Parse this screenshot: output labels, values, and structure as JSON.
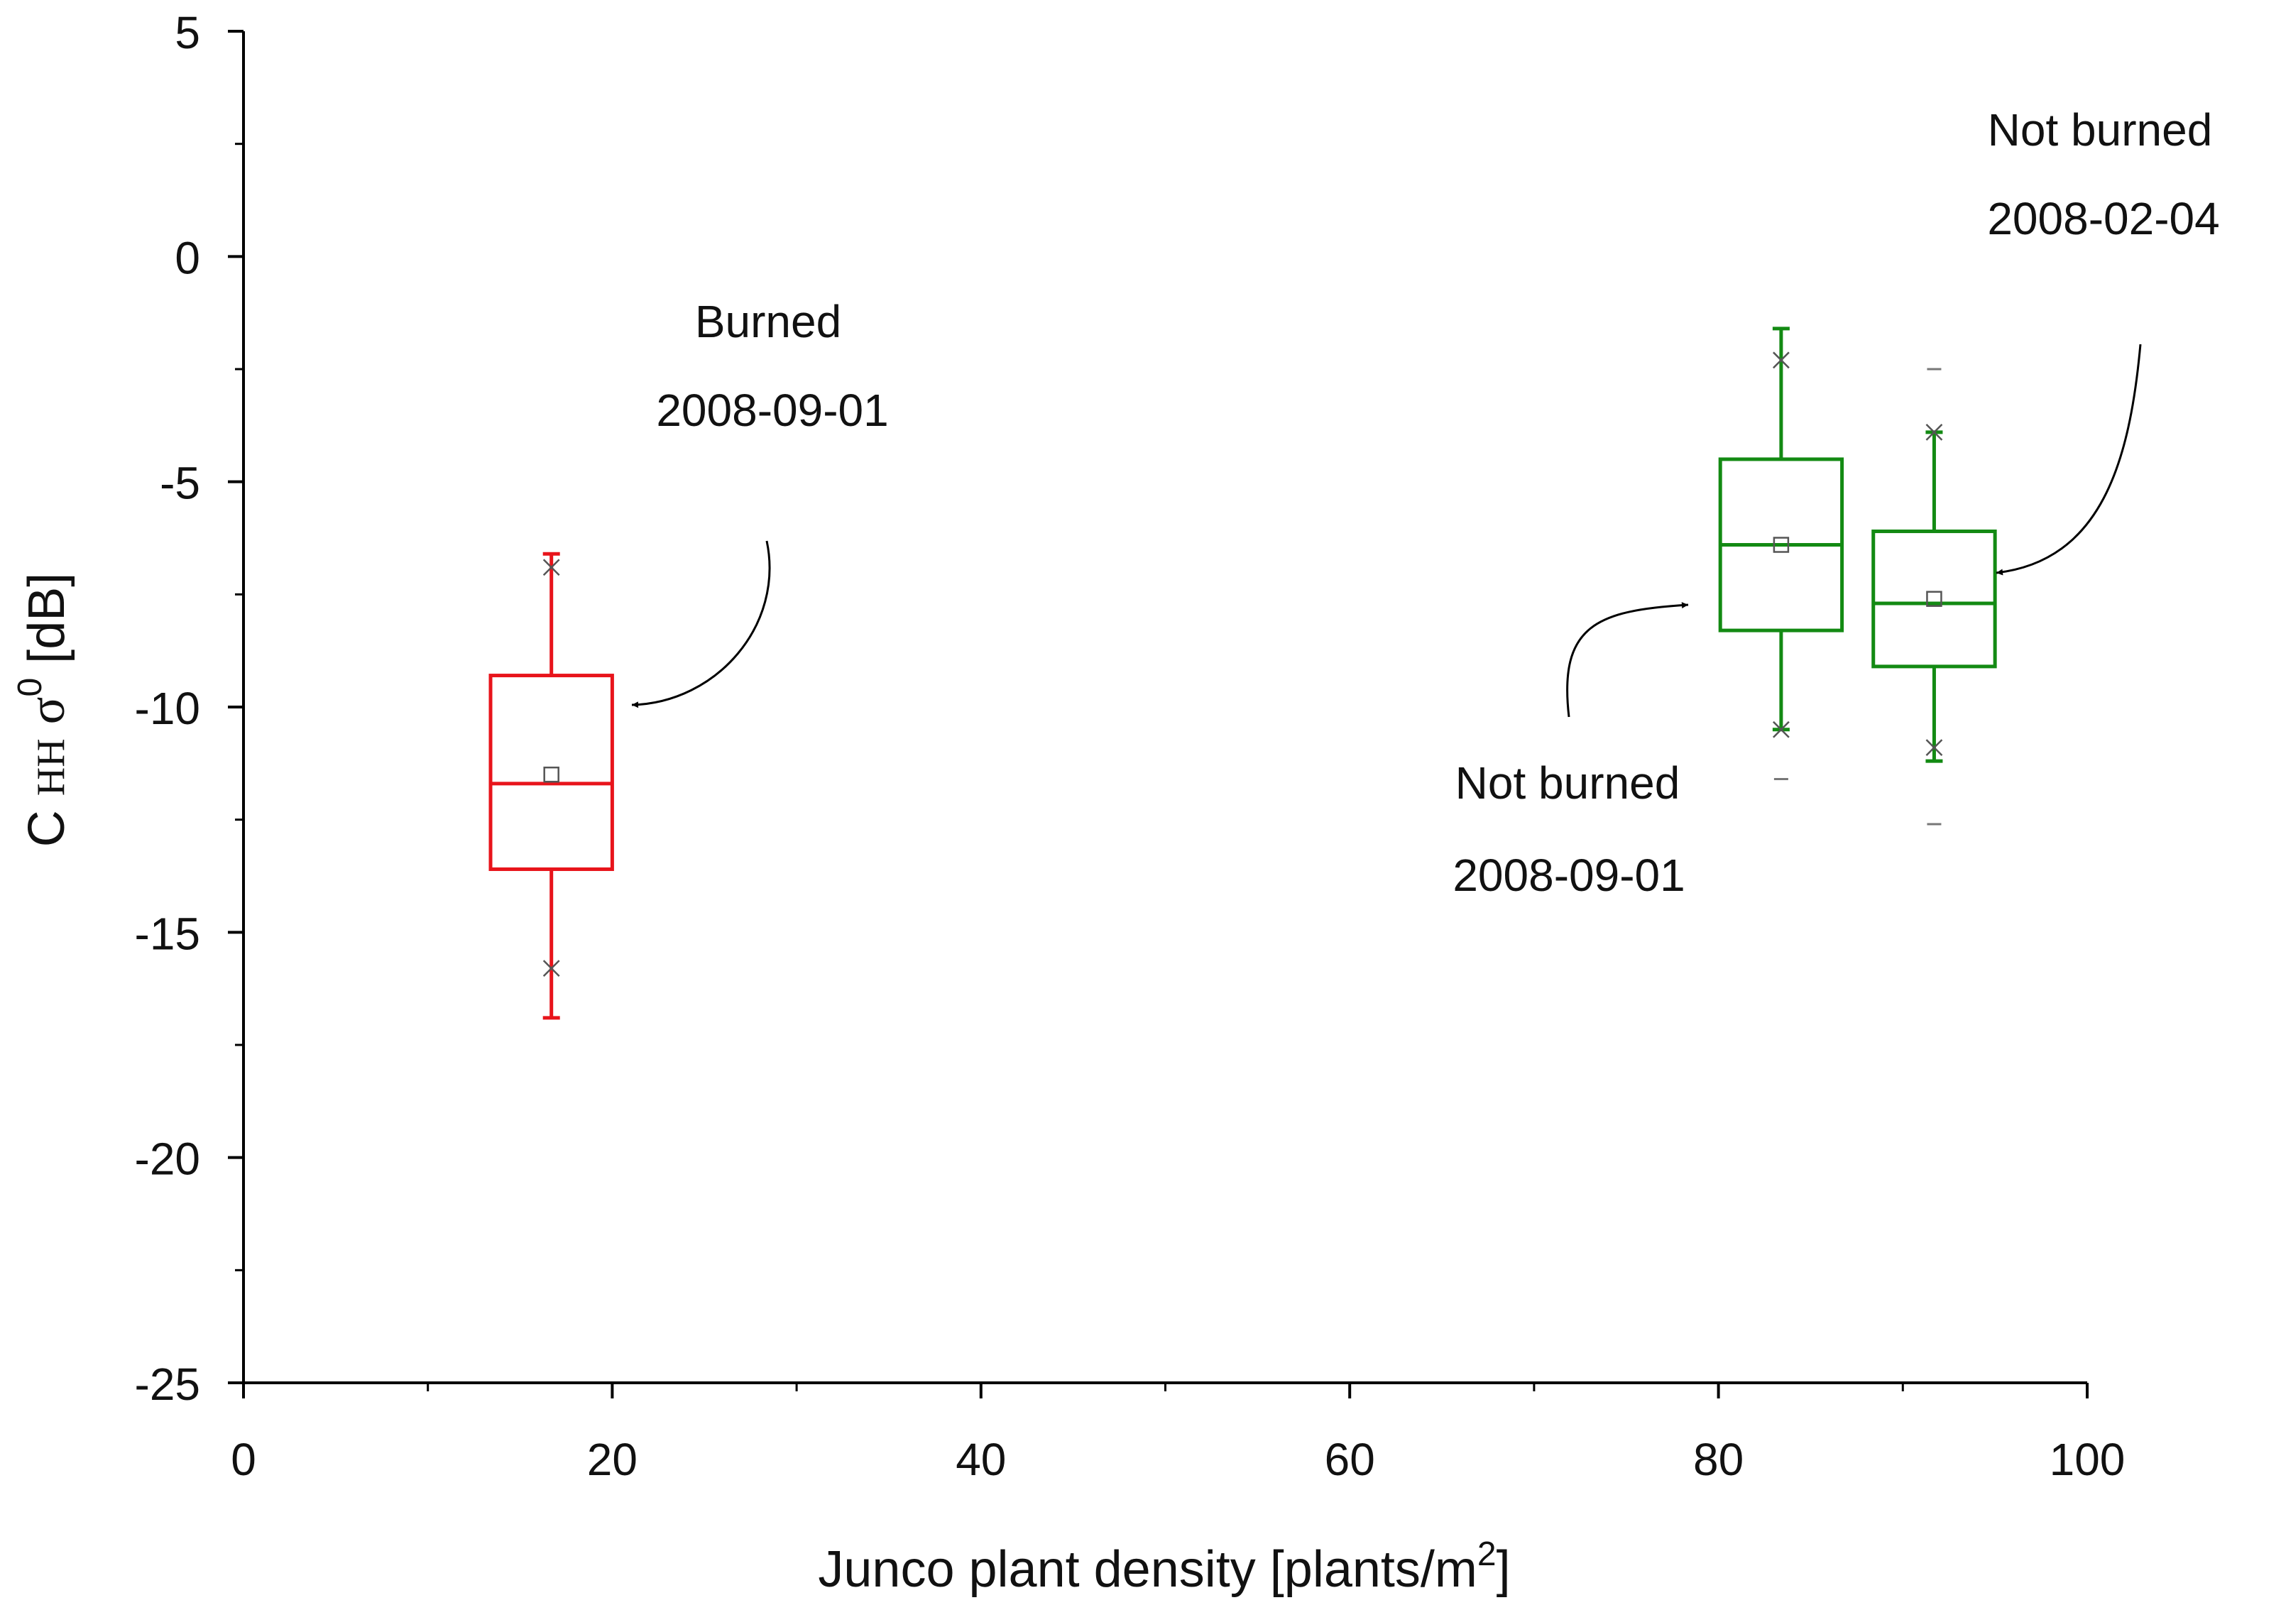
{
  "chart_data": {
    "type": "box",
    "title": "",
    "xlabel": {
      "main": "Junco plant density [plants/m",
      "sup": "2",
      "end": "]"
    },
    "ylabel": {
      "prefix": "C",
      "sub": "HH",
      "sigma": "σ",
      "sup": "0",
      "suffix": "[dB]"
    },
    "xlim": [
      0,
      100
    ],
    "ylim": [
      -25,
      5
    ],
    "xticks": [
      0,
      20,
      40,
      60,
      80,
      100
    ],
    "xtick_labels": [
      "0",
      "20",
      "40",
      "60",
      "80",
      "100"
    ],
    "yticks": [
      5,
      0,
      -5,
      -10,
      -15,
      -20,
      -25
    ],
    "ytick_labels": [
      "5",
      "0",
      "-5",
      "-10",
      "-15",
      "-20",
      "-25"
    ],
    "grid": false,
    "series": [
      {
        "color": "#e8141b",
        "x": 16.7,
        "box_halfwidth": 3.3,
        "whisker_low": -16.9,
        "q1": -13.6,
        "median": -11.7,
        "q3": -9.3,
        "whisker_high": -6.6,
        "mean": -11.5,
        "p1": -15.8,
        "p99": -6.9,
        "min": null,
        "max": null
      },
      {
        "color": "#138a13",
        "x": 83.4,
        "box_halfwidth": 3.3,
        "whisker_low": -10.5,
        "q1": -8.3,
        "median": -6.4,
        "q3": -4.5,
        "whisker_high": -1.6,
        "mean": -6.4,
        "p1": -10.5,
        "p99": -2.3,
        "min": -11.6,
        "max": null
      },
      {
        "color": "#138a13",
        "x": 91.7,
        "box_halfwidth": 3.3,
        "whisker_low": -11.2,
        "q1": -9.1,
        "median": -7.7,
        "q3": -6.1,
        "whisker_high": -3.9,
        "mean": -7.6,
        "p1": -10.9,
        "p99": -3.9,
        "min": -12.6,
        "max": -2.5
      }
    ],
    "annotations": [
      {
        "line1": "Burned",
        "line2": "2008-09-01"
      },
      {
        "line1": "Not burned",
        "line2": "2008-09-01"
      },
      {
        "line1": "Not burned",
        "line2": "2008-02-04"
      }
    ]
  }
}
